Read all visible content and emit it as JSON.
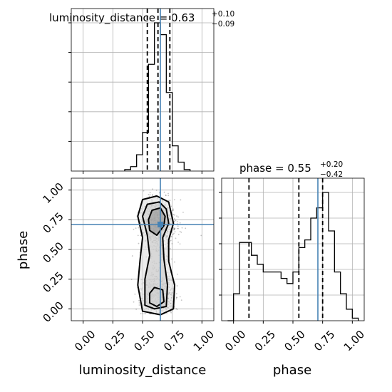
{
  "colors": {
    "truth": "#4682b4",
    "hist": "#000000",
    "grid": "#b0b0b0",
    "scatter": "#555555"
  },
  "chart_data": [
    {
      "panel": "luminosity_distance-1d",
      "type": "bar",
      "title": {
        "text": "luminosity_distance = 0.63",
        "sup": "+0.10",
        "sub": "−0.09"
      },
      "x": {
        "label": "",
        "range": [
          -0.1,
          1.1
        ],
        "ticks": [
          0.0,
          0.25,
          0.5,
          0.75,
          1.0
        ]
      },
      "bin_edges": [
        0.35,
        0.4,
        0.45,
        0.5,
        0.55,
        0.6,
        0.65,
        0.7,
        0.75,
        0.8,
        0.85,
        0.9
      ],
      "values": [
        0.01,
        0.03,
        0.11,
        0.26,
        0.72,
        1.0,
        0.92,
        0.53,
        0.17,
        0.06,
        0.01
      ],
      "quantiles": [
        0.54,
        0.63,
        0.73
      ],
      "truth": 0.65,
      "grid": true
    },
    {
      "panel": "phase-1d",
      "type": "bar",
      "title": {
        "text": "phase = 0.55",
        "sup": "+0.20",
        "sub": "−0.42"
      },
      "x": {
        "label": "phase",
        "range": [
          -0.1,
          1.1
        ],
        "ticks": [
          0.0,
          0.25,
          0.5,
          0.75,
          1.0
        ],
        "tick_labels": [
          "0.00",
          "0.25",
          "0.50",
          "0.75",
          "1.00"
        ]
      },
      "bin_edges": [
        -0.05,
        0.0,
        0.05,
        0.1,
        0.15,
        0.2,
        0.25,
        0.3,
        0.35,
        0.4,
        0.45,
        0.5,
        0.55,
        0.6,
        0.65,
        0.7,
        0.75,
        0.8,
        0.85,
        0.9,
        0.95,
        1.0,
        1.05
      ],
      "values": [
        0.0,
        0.21,
        0.61,
        0.61,
        0.51,
        0.44,
        0.38,
        0.38,
        0.38,
        0.33,
        0.29,
        0.38,
        0.57,
        0.63,
        0.8,
        0.88,
        1.0,
        0.7,
        0.38,
        0.21,
        0.09,
        0.02
      ],
      "quantiles": [
        0.13,
        0.55,
        0.75
      ],
      "truth": 0.71,
      "grid": true
    },
    {
      "panel": "luminosity_distance-phase-2d",
      "type": "scatter",
      "x": {
        "label": "luminosity_distance",
        "range": [
          -0.1,
          1.1
        ],
        "ticks": [
          0.0,
          0.25,
          0.5,
          0.75,
          1.0
        ],
        "tick_labels": [
          "0.00",
          "0.25",
          "0.50",
          "0.75",
          "1.00"
        ]
      },
      "y": {
        "label": "phase",
        "range": [
          -0.1,
          1.1
        ],
        "ticks": [
          0.0,
          0.25,
          0.5,
          0.75,
          1.0
        ],
        "tick_labels": [
          "0.00",
          "0.25",
          "0.50",
          "0.75",
          "1.00"
        ]
      },
      "truth": {
        "x": 0.65,
        "y": 0.71
      },
      "contours": [
        [
          [
            0.46,
            0.78
          ],
          [
            0.5,
            0.92
          ],
          [
            0.62,
            0.95
          ],
          [
            0.72,
            0.9
          ],
          [
            0.76,
            0.72
          ],
          [
            0.72,
            0.58
          ],
          [
            0.72,
            0.4
          ],
          [
            0.77,
            0.2
          ],
          [
            0.76,
            0.0
          ],
          [
            0.65,
            -0.05
          ],
          [
            0.5,
            -0.02
          ],
          [
            0.46,
            0.2
          ],
          [
            0.48,
            0.42
          ],
          [
            0.5,
            0.6
          ]
        ],
        [
          [
            0.5,
            0.78
          ],
          [
            0.54,
            0.88
          ],
          [
            0.64,
            0.9
          ],
          [
            0.7,
            0.84
          ],
          [
            0.72,
            0.72
          ],
          [
            0.67,
            0.6
          ],
          [
            0.68,
            0.42
          ],
          [
            0.71,
            0.2
          ],
          [
            0.7,
            0.02
          ],
          [
            0.6,
            0.0
          ],
          [
            0.52,
            0.03
          ],
          [
            0.52,
            0.25
          ],
          [
            0.56,
            0.45
          ],
          [
            0.54,
            0.62
          ]
        ],
        [
          [
            0.55,
            0.75
          ],
          [
            0.58,
            0.83
          ],
          [
            0.65,
            0.85
          ],
          [
            0.69,
            0.78
          ],
          [
            0.68,
            0.7
          ],
          [
            0.62,
            0.62
          ],
          [
            0.56,
            0.66
          ]
        ],
        [
          [
            0.56,
            0.13
          ],
          [
            0.6,
            0.18
          ],
          [
            0.67,
            0.16
          ],
          [
            0.68,
            0.06
          ],
          [
            0.62,
            0.02
          ],
          [
            0.56,
            0.05
          ]
        ]
      ],
      "grid": true
    }
  ]
}
